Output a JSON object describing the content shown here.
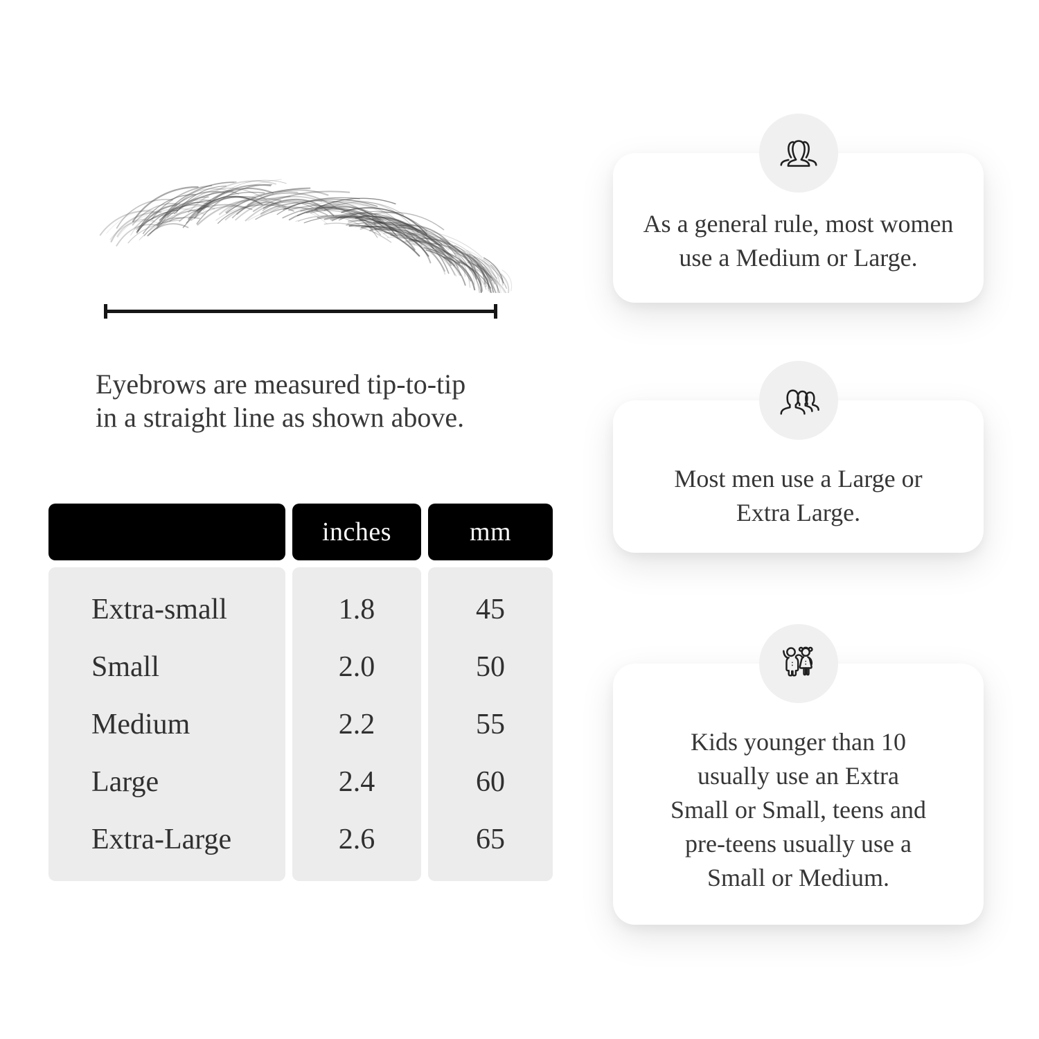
{
  "colors": {
    "page_bg": "#ffffff",
    "table_header_bg": "#000000",
    "table_header_text": "#fafafa",
    "table_body_bg": "#ececec",
    "card_bg": "#ffffff",
    "icon_circle_bg": "#f0f0f0",
    "text": "#333333",
    "measure_line": "#161616"
  },
  "measurement": {
    "caption_line1": "Eyebrows are measured tip-to-tip",
    "caption_line2": "in a straight line as shown above."
  },
  "size_table": {
    "headers": {
      "size": "",
      "inches": "inches",
      "mm": "mm"
    },
    "rows": [
      {
        "size": "Extra-small",
        "inches": "1.8",
        "mm": "45"
      },
      {
        "size": "Small",
        "inches": "2.0",
        "mm": "50"
      },
      {
        "size": "Medium",
        "inches": "2.2",
        "mm": "55"
      },
      {
        "size": "Large",
        "inches": "2.4",
        "mm": "60"
      },
      {
        "size": "Extra-Large",
        "inches": "2.6",
        "mm": "65"
      }
    ]
  },
  "tips": [
    {
      "icon": "women-group-icon",
      "lines": [
        "As a general rule, most women",
        "use a Medium or Large."
      ]
    },
    {
      "icon": "men-group-icon",
      "lines": [
        "Most men use a Large or",
        "Extra Large."
      ]
    },
    {
      "icon": "kids-icon",
      "lines": [
        "Kids younger than 10",
        "usually use an Extra",
        "Small or Small, teens and",
        "pre-teens usually use a",
        "Small or Medium."
      ]
    }
  ]
}
